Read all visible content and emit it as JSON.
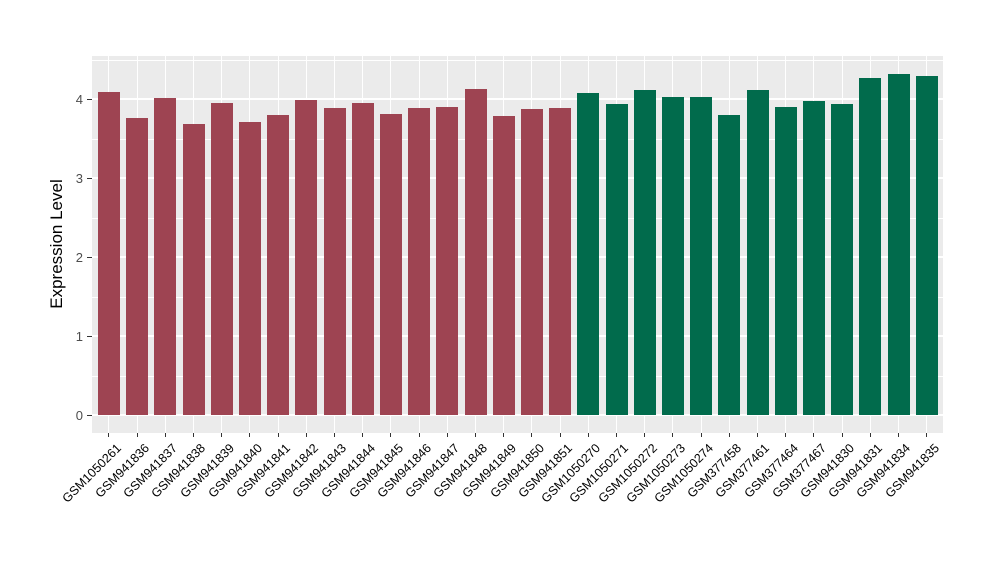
{
  "chart_data": {
    "type": "bar",
    "title": "",
    "xlabel": "",
    "ylabel": "Expression Level",
    "ylim": [
      -0.22,
      4.54
    ],
    "yticks": [
      0,
      1,
      2,
      3,
      4
    ],
    "ytick_labels": [
      "0",
      "1",
      "2",
      "3",
      "4"
    ],
    "minor_gridlines": [
      0.5,
      1.5,
      2.5,
      3.5,
      4.5
    ],
    "grid": "white major and minor horizontal lines plus vertical category lines on gray panel",
    "legend_position": "none",
    "panel_background": "#EBEBEB",
    "gridline_color": "#FFFFFF",
    "categories": [
      "GSM1050261",
      "GSM941836",
      "GSM941837",
      "GSM941838",
      "GSM941839",
      "GSM941840",
      "GSM941841",
      "GSM941842",
      "GSM941843",
      "GSM941844",
      "GSM941845",
      "GSM941846",
      "GSM941847",
      "GSM941848",
      "GSM941849",
      "GSM941850",
      "GSM941851",
      "GSM1050270",
      "GSM1050271",
      "GSM1050272",
      "GSM1050273",
      "GSM1050274",
      "GSM377458",
      "GSM377461",
      "GSM377464",
      "GSM377467",
      "GSM941830",
      "GSM941831",
      "GSM941834",
      "GSM941835"
    ],
    "values": [
      4.09,
      3.76,
      4.01,
      3.68,
      3.95,
      3.71,
      3.8,
      3.99,
      3.89,
      3.95,
      3.81,
      3.89,
      3.9,
      4.13,
      3.78,
      3.87,
      3.89,
      4.08,
      3.94,
      4.11,
      4.03,
      4.02,
      3.8,
      4.12,
      3.9,
      3.97,
      3.94,
      4.26,
      4.32,
      4.29
    ],
    "group_of": [
      0,
      0,
      0,
      0,
      0,
      0,
      0,
      0,
      0,
      0,
      0,
      0,
      0,
      0,
      0,
      0,
      0,
      1,
      1,
      1,
      1,
      1,
      1,
      1,
      1,
      1,
      1,
      1,
      1,
      1
    ],
    "groups": [
      {
        "name": "group-1-red",
        "color": "#9E4452"
      },
      {
        "name": "group-2-green",
        "color": "#016B4C"
      }
    ],
    "axis_text_color": "#4D4D4D",
    "tick_mark_color": "#333333"
  }
}
